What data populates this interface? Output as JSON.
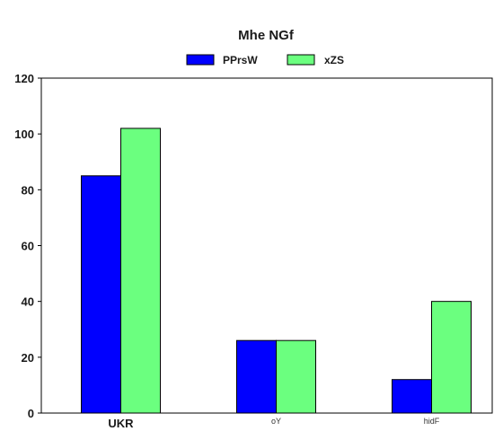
{
  "chart_data": {
    "type": "bar",
    "title": "Mhe NGf",
    "categories": [
      "UKR",
      "oY",
      "hidF"
    ],
    "series": [
      {
        "name": "PPrsW",
        "values": [
          85,
          26,
          12
        ],
        "color": "#0000ff"
      },
      {
        "name": "xZS",
        "values": [
          102,
          26,
          40
        ],
        "color": "#6bff7f"
      }
    ],
    "ylim": [
      0,
      120
    ],
    "yticks": [
      0,
      20,
      40,
      60,
      80,
      100,
      120
    ],
    "xlabel": "",
    "ylabel": "",
    "grid": false,
    "legend_position": "top-center"
  }
}
